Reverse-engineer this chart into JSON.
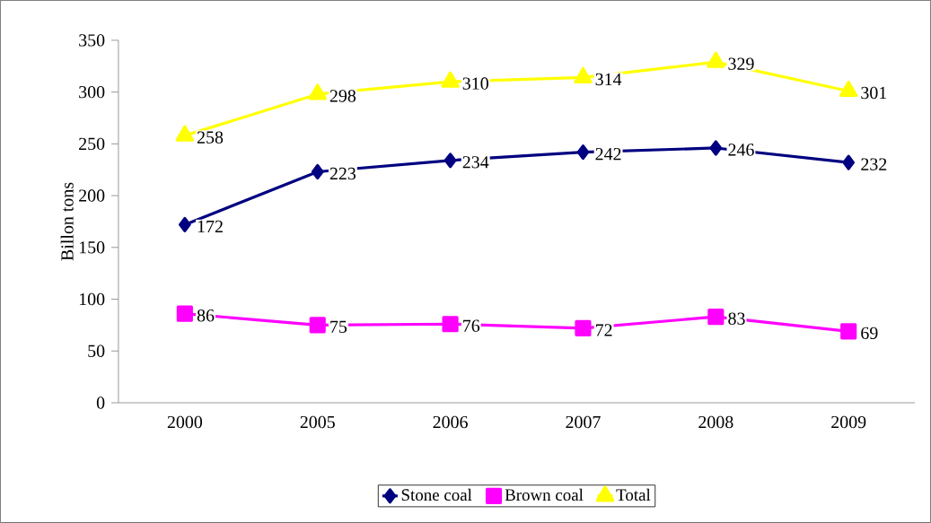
{
  "chart_data": {
    "type": "line",
    "ylabel": "Billon tons",
    "categories": [
      "2000",
      "2005",
      "2006",
      "2007",
      "2008",
      "2009"
    ],
    "series": [
      {
        "name": "Stone coal",
        "color": "#000080",
        "marker": "diamond",
        "values": [
          172,
          223,
          234,
          242,
          246,
          232
        ]
      },
      {
        "name": "Brown coal",
        "color": "#ff00ff",
        "marker": "square",
        "values": [
          86,
          75,
          76,
          72,
          83,
          69
        ]
      },
      {
        "name": "Total",
        "color": "#ffff00",
        "marker": "triangle",
        "values": [
          258,
          298,
          310,
          314,
          329,
          301
        ]
      }
    ],
    "ylim": [
      0,
      350
    ],
    "yticks": [
      0,
      50,
      100,
      150,
      200,
      250,
      300,
      350
    ],
    "data_labels": true,
    "legend": "bottom",
    "grid": false,
    "line_style": "solid"
  }
}
